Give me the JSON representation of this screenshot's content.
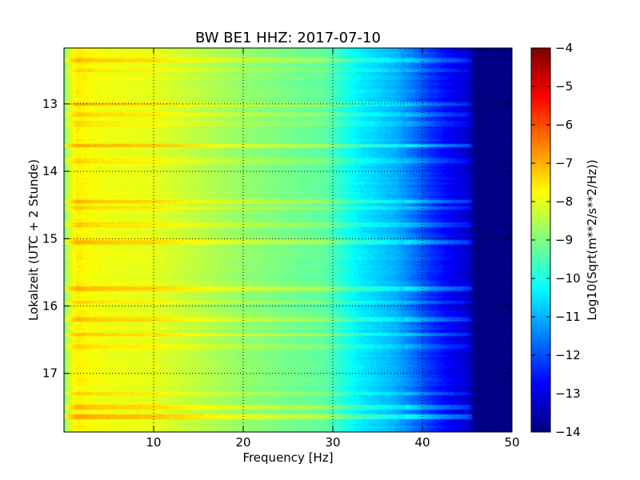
{
  "chart_data": {
    "type": "heatmap",
    "title": "BW BE1 HHZ: 2017-07-10",
    "xlabel": "Frequency [Hz]",
    "ylabel": "Lokalzeit (UTC + 2 Stunde)",
    "xlim": [
      0,
      50
    ],
    "ylim": [
      12.17,
      17.87
    ],
    "y_inverted": true,
    "grid": true,
    "xticks": [
      10,
      20,
      30,
      40,
      50
    ],
    "xtick_labels": [
      "10",
      "20",
      "30",
      "40",
      "50"
    ],
    "yticks": [
      13,
      14,
      15,
      16,
      17
    ],
    "ytick_labels": [
      "13",
      "14",
      "15",
      "16",
      "17"
    ],
    "colorbar": {
      "label": "Log10(Sqrt(m**2/s**2/Hz))",
      "range": [
        -14,
        -4
      ],
      "ticks": [
        -4,
        -5,
        -6,
        -7,
        -8,
        -9,
        -10,
        -11,
        -12,
        -13,
        -14
      ],
      "tick_labels": [
        "−4",
        "−5",
        "−6",
        "−7",
        "−8",
        "−9",
        "−10",
        "−11",
        "−12",
        "−13",
        "−14"
      ],
      "colormap": "jet"
    },
    "spectrum_profile": {
      "frequency_hz": [
        0,
        0.5,
        1.5,
        3,
        5,
        10,
        15,
        20,
        25,
        29,
        31,
        33,
        35,
        37,
        39,
        41,
        43,
        45,
        46,
        50
      ],
      "log_psd": [
        -9.2,
        -8.2,
        -7.6,
        -7.8,
        -7.9,
        -8.0,
        -8.4,
        -8.8,
        -9.1,
        -9.3,
        -9.9,
        -10.4,
        -10.7,
        -11.0,
        -11.6,
        -12.3,
        -12.8,
        -13.2,
        -14.0,
        -14.0
      ]
    },
    "highlighted_times": [
      {
        "time": 12.35,
        "offset": 0.5
      },
      {
        "time": 12.5,
        "offset": 0.35
      },
      {
        "time": 13.0,
        "offset": 0.6
      },
      {
        "time": 13.15,
        "offset": 0.35
      },
      {
        "time": 13.3,
        "offset": 0.3
      },
      {
        "time": 13.62,
        "offset": 0.9
      },
      {
        "time": 13.85,
        "offset": 0.3
      },
      {
        "time": 14.45,
        "offset": 0.7
      },
      {
        "time": 14.55,
        "offset": 0.4
      },
      {
        "time": 14.8,
        "offset": 0.4
      },
      {
        "time": 15.05,
        "offset": 0.6
      },
      {
        "time": 15.75,
        "offset": 0.65
      },
      {
        "time": 15.95,
        "offset": 0.35
      },
      {
        "time": 16.2,
        "offset": 0.55
      },
      {
        "time": 16.42,
        "offset": 0.45
      },
      {
        "time": 16.6,
        "offset": 0.3
      },
      {
        "time": 17.3,
        "offset": 0.3
      },
      {
        "time": 17.5,
        "offset": 0.5
      },
      {
        "time": 17.65,
        "offset": 0.8
      }
    ]
  }
}
